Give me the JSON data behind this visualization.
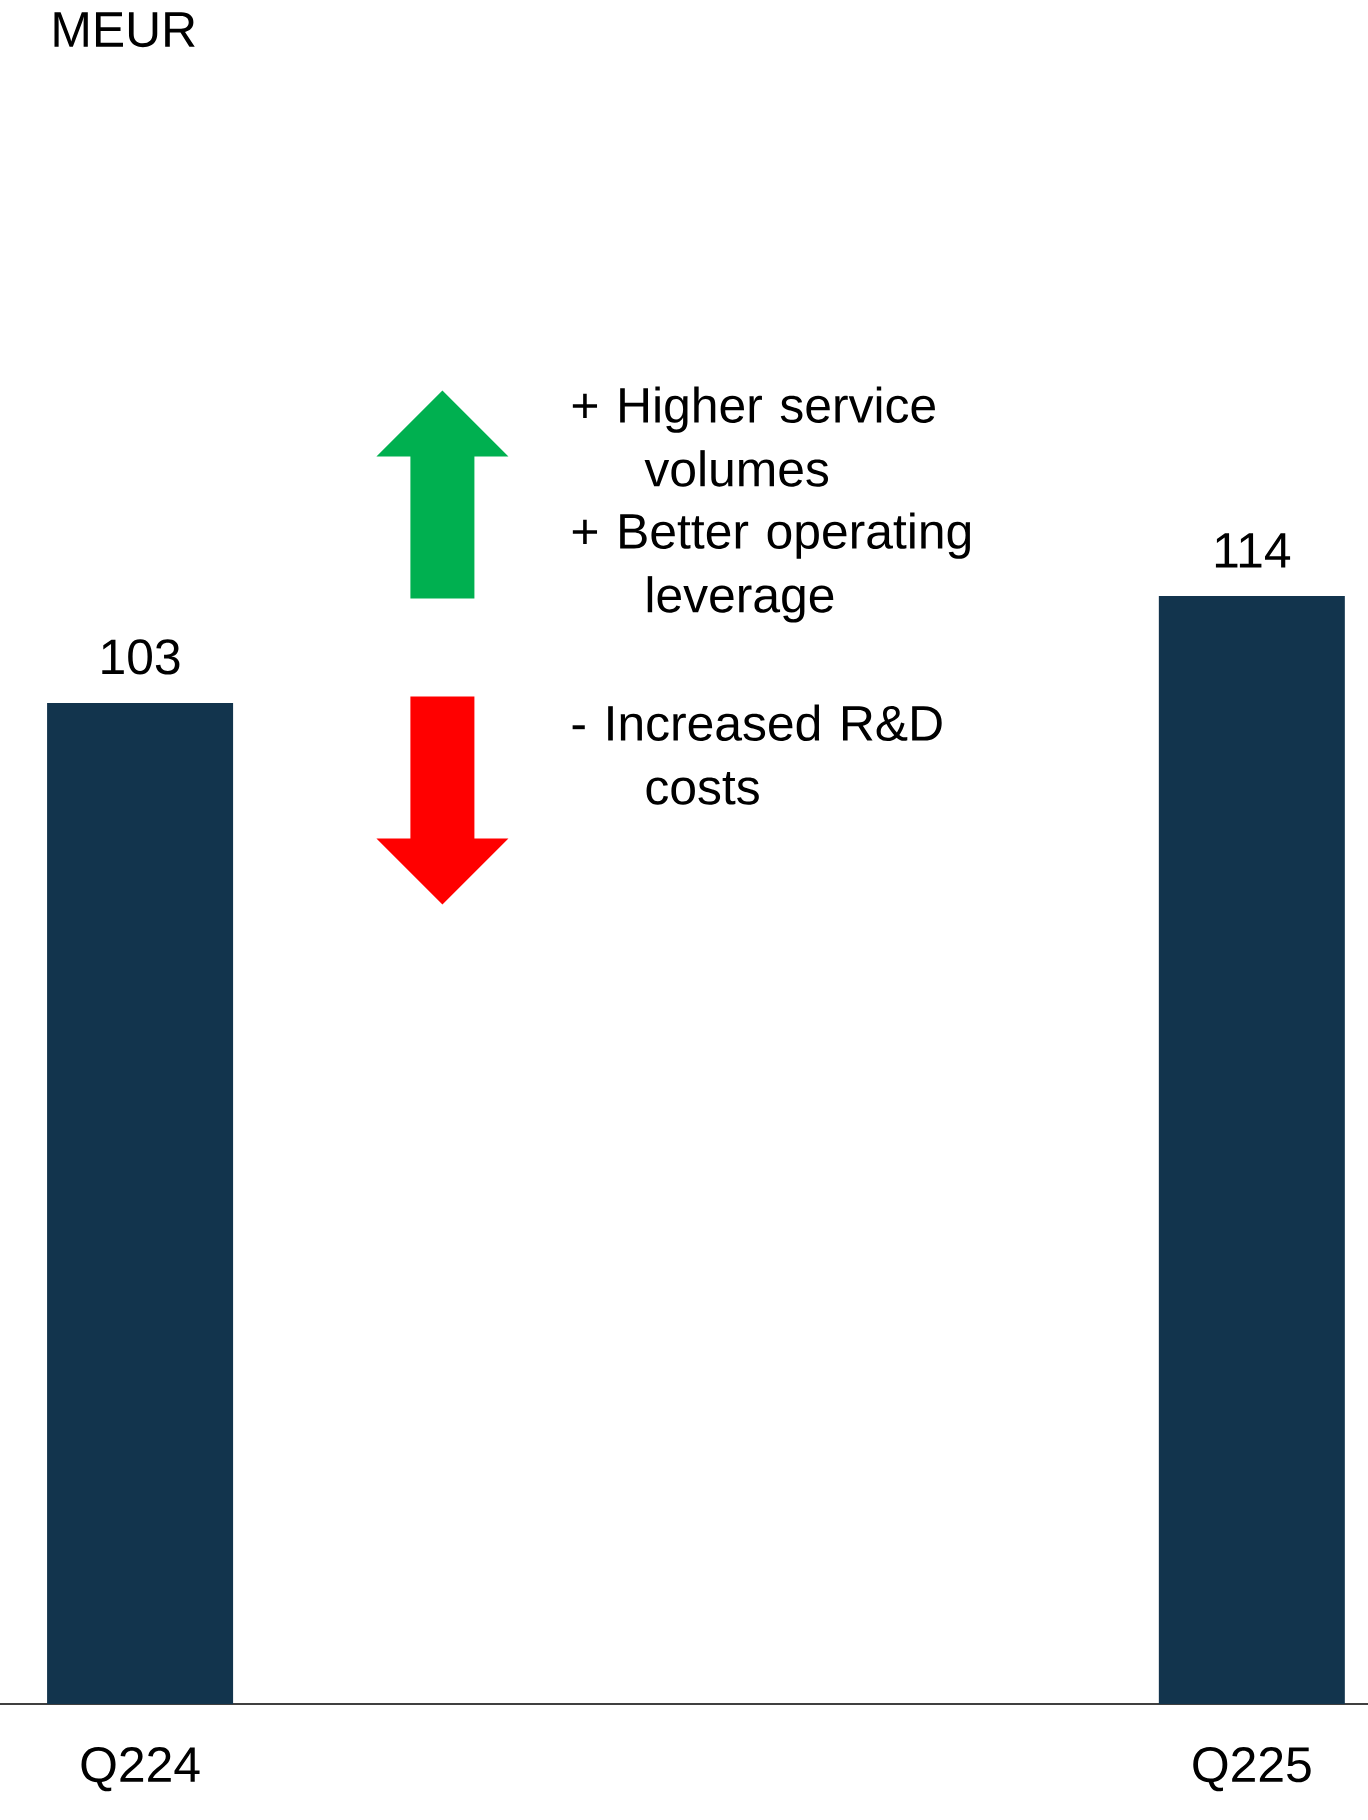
{
  "chart_data": {
    "type": "bar",
    "categories": [
      "Q224",
      null,
      "Q225"
    ],
    "values": [
      103,
      null,
      114
    ],
    "color": "#12344d",
    "data_labels": true,
    "annotations": [
      "MEUR",
      "+ Higher service volumes",
      "+ Better operating leverage",
      "- Increased R&D costs"
    ]
  }
}
